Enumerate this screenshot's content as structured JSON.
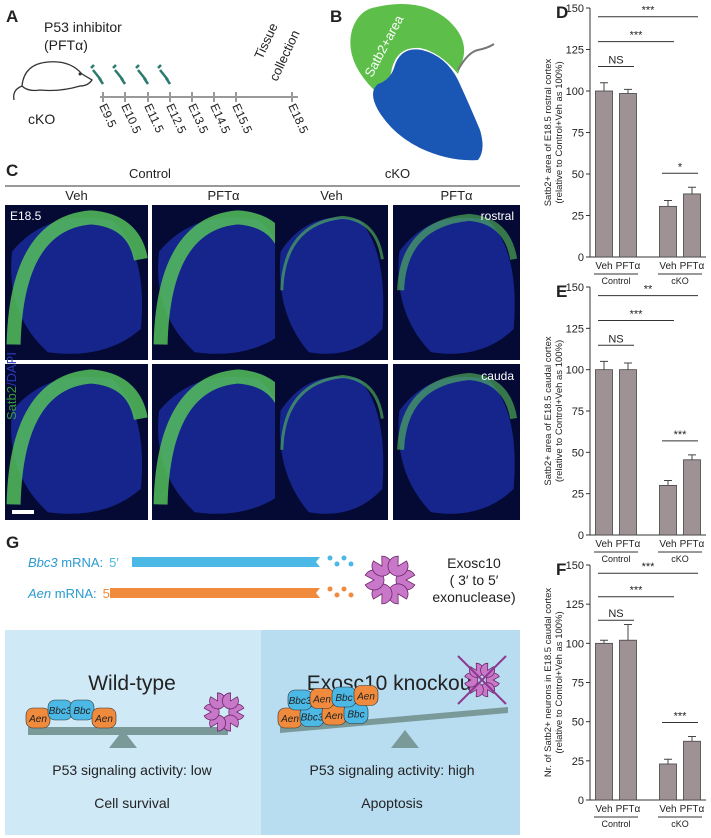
{
  "timeline": {
    "panel": "A",
    "title": [
      "P53 inhibitor",
      "(PFTα)"
    ],
    "mouse": "cKO",
    "days": [
      "E9.5",
      "E10.5",
      "E11.5",
      "E12.5",
      "E13.5",
      "E14.5",
      "E15.5",
      "E18.5"
    ],
    "end": [
      "Tissue",
      "collection"
    ]
  },
  "diagram": {
    "panel": "B",
    "label": "Satb2+area"
  },
  "micrographs": {
    "panel": "C",
    "groups": [
      "Control",
      "cKO"
    ],
    "columns": [
      "Veh",
      "PFTα",
      "Veh",
      "PFTα"
    ],
    "age": "E18.5",
    "rows": [
      "rostral",
      "cauda"
    ],
    "stain": [
      "Satb2",
      "/DAPI"
    ]
  },
  "model": {
    "panel": "G",
    "transcripts": [
      {
        "name": "Bbc3",
        "suffix": " mRNA:",
        "end": "5′"
      },
      {
        "name": "Aen",
        "suffix": " mRNA:",
        "end": "5′"
      }
    ],
    "enzyme": [
      "Exosc10",
      "( 3′ to 5′",
      "exonuclease)"
    ],
    "left": {
      "title": "Wild-type",
      "activity": "P53 signaling activity: low",
      "outcome": "Cell survival",
      "blobs": [
        "Aen",
        "Bbc3",
        "Bbc",
        "Aen"
      ]
    },
    "right": {
      "title": "Exosc10 knockout",
      "activity": "P53 signaling activity: high",
      "outcome": "Apoptosis",
      "blobs": [
        "Aen",
        "Bbc3",
        "Aen",
        "Bbc",
        "Bbc3",
        "Aen",
        "Bbc",
        "Aen"
      ]
    }
  },
  "chart_data": [
    {
      "type": "bar",
      "panel": "D",
      "ylabel": [
        "Satb2+ area of E18.5 rostral cortex",
        "(relative to Control+Veh as 100%)"
      ],
      "categories": [
        "Veh",
        "PFTα",
        "Veh",
        "PFTα"
      ],
      "groups": [
        "Control",
        "cKO"
      ],
      "values": [
        100,
        98.5,
        30.5,
        38
      ],
      "errors": [
        5,
        2.5,
        3.5,
        4
      ],
      "significance": [
        "***",
        "***",
        "NS",
        "*"
      ],
      "color": "#9e9294",
      "ylim": [
        0,
        150
      ],
      "yticks": [
        0,
        25,
        50,
        75,
        100,
        125,
        150
      ]
    },
    {
      "type": "bar",
      "panel": "E",
      "ylabel": [
        "Satb2+ area of E18.5 caudal cortex",
        "(relative to Control+Veh as 100%)"
      ],
      "categories": [
        "Veh",
        "PFTα",
        "Veh",
        "PFTα"
      ],
      "groups": [
        "Control",
        "cKO"
      ],
      "values": [
        100,
        100,
        30,
        45.5
      ],
      "errors": [
        5,
        4,
        3,
        3
      ],
      "significance": [
        "**",
        "***",
        "NS",
        "***"
      ],
      "color": "#9e9294",
      "ylim": [
        0,
        150
      ],
      "yticks": [
        0,
        25,
        50,
        75,
        100,
        125,
        150
      ]
    },
    {
      "type": "bar",
      "panel": "F",
      "ylabel": [
        "Nr. of Satb2+ neurons in E18.5 caudal cortex",
        "(relative to Control+Veh as 100%)"
      ],
      "categories": [
        "Veh",
        "PFTα",
        "Veh",
        "PFTα"
      ],
      "groups": [
        "Control",
        "cKO"
      ],
      "values": [
        100,
        102,
        23,
        37.5
      ],
      "errors": [
        2,
        10,
        3,
        3
      ],
      "significance": [
        "***",
        "***",
        "NS",
        "***"
      ],
      "color": "#9e9294",
      "ylim": [
        0,
        150
      ],
      "yticks": [
        0,
        25,
        50,
        75,
        100,
        125,
        150
      ]
    }
  ]
}
